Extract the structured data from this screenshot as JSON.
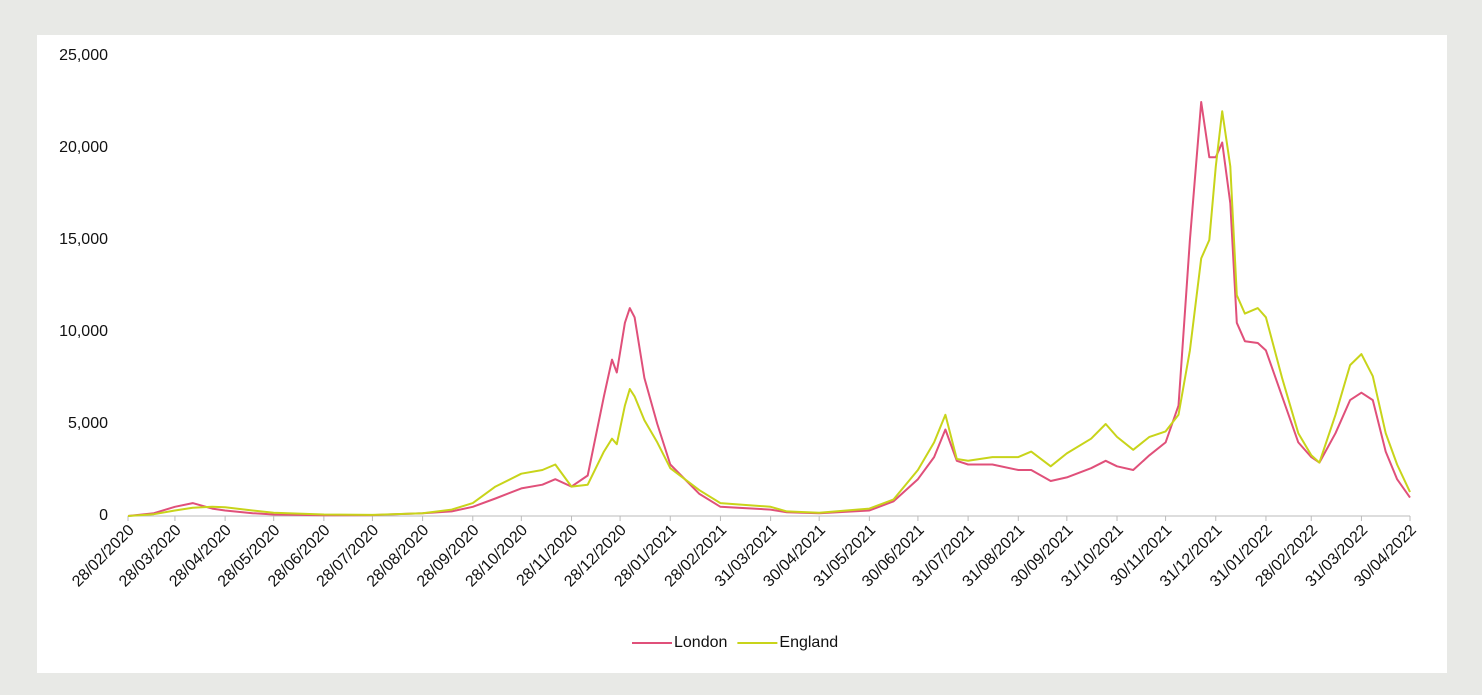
{
  "chart_data": {
    "type": "line",
    "x": [
      "28/02/2020",
      "15/03/2020",
      "28/03/2020",
      "08/04/2020",
      "20/04/2020",
      "28/04/2020",
      "15/05/2020",
      "28/05/2020",
      "28/06/2020",
      "28/07/2020",
      "28/08/2020",
      "15/09/2020",
      "28/09/2020",
      "12/10/2020",
      "28/10/2020",
      "10/11/2020",
      "18/11/2020",
      "28/11/2020",
      "08/12/2020",
      "18/12/2020",
      "23/12/2020",
      "26/12/2020",
      "31/12/2020",
      "03/01/2021",
      "06/01/2021",
      "12/01/2021",
      "20/01/2021",
      "28/01/2021",
      "15/02/2021",
      "28/02/2021",
      "31/03/2021",
      "10/04/2021",
      "30/04/2021",
      "31/05/2021",
      "15/06/2021",
      "30/06/2021",
      "10/07/2021",
      "17/07/2021",
      "24/07/2021",
      "31/07/2021",
      "15/08/2021",
      "31/08/2021",
      "08/09/2021",
      "20/09/2021",
      "30/09/2021",
      "15/10/2021",
      "24/10/2021",
      "31/10/2021",
      "10/11/2021",
      "20/11/2021",
      "30/11/2021",
      "08/12/2021",
      "15/12/2021",
      "22/12/2021",
      "27/12/2021",
      "31/12/2021",
      "04/01/2022",
      "09/01/2022",
      "13/01/2022",
      "18/01/2022",
      "26/01/2022",
      "31/01/2022",
      "10/02/2022",
      "20/02/2022",
      "28/02/2022",
      "05/03/2022",
      "15/03/2022",
      "24/03/2022",
      "31/03/2022",
      "07/04/2022",
      "15/04/2022",
      "22/04/2022",
      "30/04/2022"
    ],
    "series": [
      {
        "name": "London",
        "color": "#e0507a",
        "values": [
          0,
          150,
          500,
          700,
          400,
          300,
          150,
          80,
          40,
          50,
          150,
          250,
          500,
          950,
          1500,
          1700,
          2000,
          1600,
          2200,
          6500,
          8500,
          7800,
          10500,
          11300,
          10800,
          7500,
          5000,
          2800,
          1200,
          500,
          350,
          200,
          150,
          300,
          800,
          2000,
          3200,
          4700,
          3000,
          2800,
          2800,
          2500,
          2500,
          1900,
          2100,
          2600,
          3000,
          2700,
          2500,
          3300,
          4000,
          6000,
          15000,
          22500,
          19500,
          19500,
          20300,
          17000,
          10500,
          9500,
          9400,
          9000,
          6500,
          4000,
          3200,
          2900,
          4500,
          6300,
          6700,
          6300,
          3500,
          2000,
          1000
        ]
      },
      {
        "name": "England",
        "color": "#c8d41a",
        "values": [
          0,
          100,
          300,
          450,
          500,
          480,
          300,
          180,
          80,
          60,
          150,
          350,
          700,
          1600,
          2300,
          2500,
          2800,
          1600,
          1700,
          3500,
          4200,
          3900,
          6000,
          6900,
          6500,
          5200,
          4000,
          2600,
          1400,
          700,
          500,
          250,
          180,
          400,
          900,
          2500,
          4000,
          5500,
          3100,
          3000,
          3200,
          3200,
          3500,
          2700,
          3400,
          4200,
          5000,
          4300,
          3600,
          4300,
          4600,
          5500,
          9000,
          14000,
          15000,
          19000,
          22000,
          19000,
          12000,
          11000,
          11300,
          10800,
          7500,
          4500,
          3300,
          2900,
          5500,
          8200,
          8800,
          7600,
          4500,
          2800,
          1300
        ]
      }
    ],
    "xlim": [
      "28/02/2020",
      "30/04/2022"
    ],
    "xticks": [
      "28/02/2020",
      "28/03/2020",
      "28/04/2020",
      "28/05/2020",
      "28/06/2020",
      "28/07/2020",
      "28/08/2020",
      "28/09/2020",
      "28/10/2020",
      "28/11/2020",
      "28/12/2020",
      "28/01/2021",
      "28/02/2021",
      "31/03/2021",
      "30/04/2021",
      "31/05/2021",
      "30/06/2021",
      "31/07/2021",
      "31/08/2021",
      "30/09/2021",
      "31/10/2021",
      "30/11/2021",
      "31/12/2021",
      "31/01/2022",
      "28/02/2022",
      "31/03/2022",
      "30/04/2022"
    ],
    "ylim": [
      0,
      25000
    ],
    "yticks": [
      0,
      {
        "value": 5000,
        "label": "5,000"
      },
      {
        "value": 10000,
        "label": "10,000"
      },
      {
        "value": 15000,
        "label": "15,000"
      },
      {
        "value": 20000,
        "label": "20,000"
      },
      {
        "value": 25000,
        "label": "25,000"
      }
    ],
    "legend": "bottom"
  }
}
